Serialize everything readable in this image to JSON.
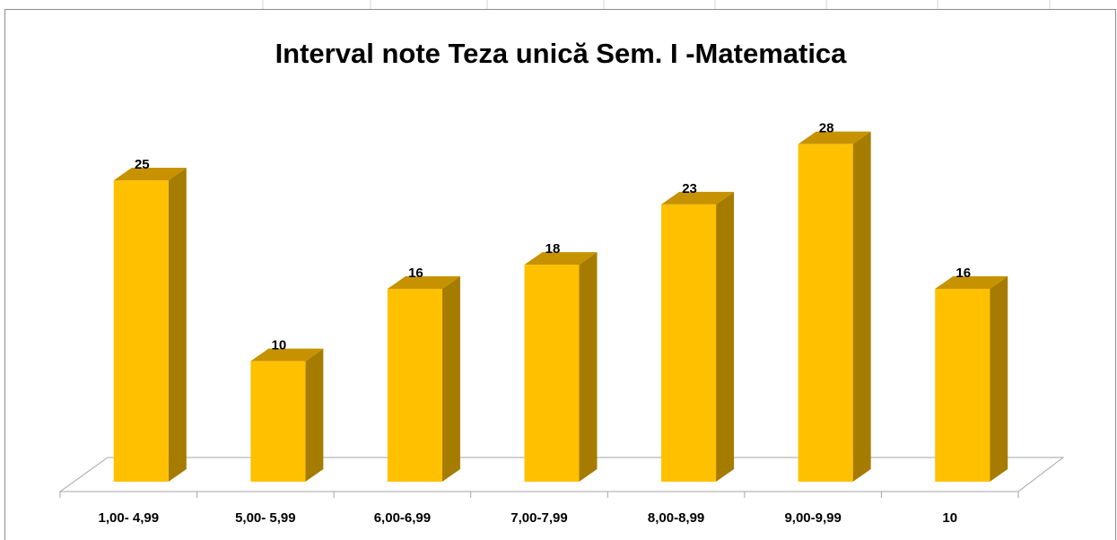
{
  "chart_data": {
    "type": "bar3d",
    "title": "Interval note Teza unică Sem. I -Matematica",
    "categories": [
      "1,00- 4,99",
      "5,00- 5,99",
      "6,00-6,99",
      "7,00-7,99",
      "8,00-8,99",
      "9,00-9,99",
      "10"
    ],
    "values": [
      25,
      10,
      16,
      18,
      23,
      28,
      16
    ],
    "color": "#ffc000"
  }
}
